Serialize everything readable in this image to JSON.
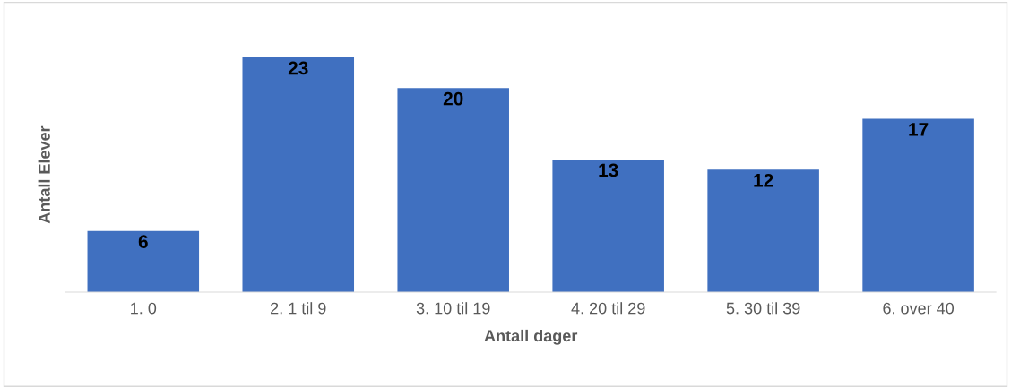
{
  "chart_data": {
    "type": "bar",
    "xlabel": "Antall dager",
    "ylabel": "Antall Elever",
    "categories": [
      "1. 0",
      "2. 1 til 9",
      "3. 10 til 19",
      "4. 20 til 29",
      "5. 30 til 39",
      "6. over 40"
    ],
    "values": [
      6,
      23,
      20,
      13,
      12,
      17
    ],
    "color": "#4070c0",
    "tick_labels": "x",
    "data_labels": true
  }
}
